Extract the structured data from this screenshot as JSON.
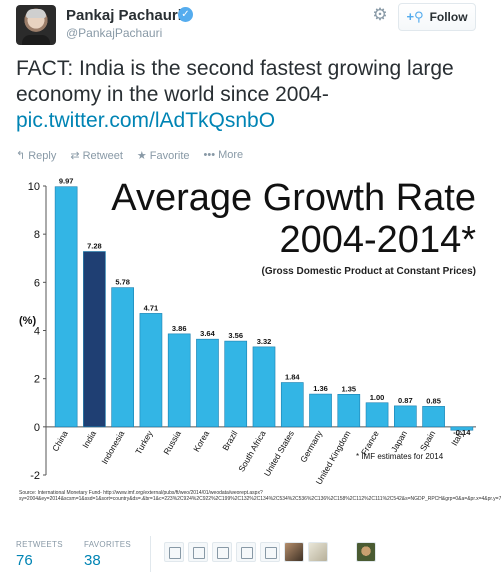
{
  "header": {
    "name": "Pankaj Pachauri",
    "handle": "@PankajPachauri",
    "follow_label": "Follow",
    "verified_icon": "verified-badge-icon",
    "settings_icon": "gear-icon"
  },
  "tweet": {
    "text": "FACT: India is the second fastest growing large economy in the world since 2004-",
    "link": "pic.twitter.com/lAdTkQsnbO"
  },
  "actions": {
    "reply": "Reply",
    "retweet": "Retweet",
    "favorite": "Favorite",
    "more": "More"
  },
  "chart_data": {
    "type": "bar",
    "title": "Average Growth Rate",
    "subtitle": "2004-2014*",
    "note": "(Gross Domestic Product at Constant Prices)",
    "ylabel": "(%)",
    "ylim": [
      -2,
      10
    ],
    "yticks": [
      -2,
      0,
      2,
      4,
      6,
      8,
      10
    ],
    "categories": [
      "China",
      "India",
      "Indonesia",
      "Turkey",
      "Russia",
      "Korea",
      "Brazil",
      "South Africa",
      "United States",
      "Germany",
      "United Kingdom",
      "France",
      "Japan",
      "Spain",
      "Italy"
    ],
    "values": [
      9.97,
      7.28,
      5.78,
      4.71,
      3.86,
      3.64,
      3.56,
      3.32,
      1.84,
      1.36,
      1.35,
      1.0,
      0.87,
      0.85,
      -0.14
    ],
    "value_labels": [
      "9.97",
      "7.28",
      "5.78",
      "4.71",
      "3.86",
      "3.64",
      "3.56",
      "3.32",
      "1.84",
      "1.36",
      "1.35",
      "1.00",
      "0.87",
      "0.85",
      "-0.14"
    ],
    "highlight_index": 1,
    "colors": {
      "bar": "#33b5e5",
      "highlight": "#1f3f73",
      "bar_edge": "#ffffff"
    },
    "footnote": "* IMF estimates for 2014",
    "source": "Source: International Monetary Fund- http://www.imf.org/external/pubs/ft/weo/2014/01/weodata/weorept.aspx?sy=2004&ey=2014&scsm=1&ssd=1&sort=country&ds=.&br=1&c=223%2C924%2C922%2C199%2C132%2C134%2C534%2C536%2C136%2C158%2C112%2C111%2C542&s=NGDP_RPCH&grp=0&a=&pr.x=4&pr.y=7"
  },
  "stats": {
    "retweets_label": "RETWEETS",
    "retweets_value": "76",
    "favorites_label": "FAVORITES",
    "favorites_value": "38"
  }
}
